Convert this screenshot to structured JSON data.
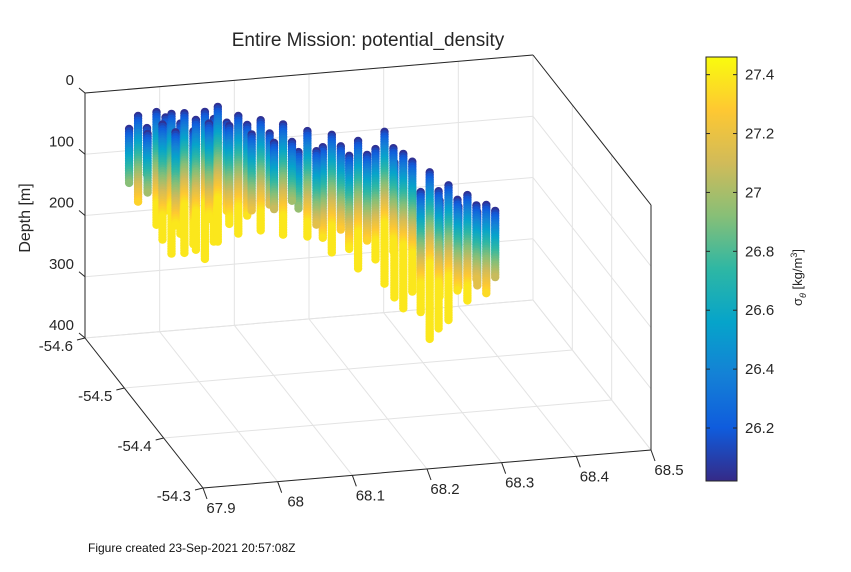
{
  "footer": "Figure created 23-Sep-2021 20:57:08Z",
  "colorbar": {
    "label_main": "σ",
    "label_sub": "θ",
    "label_unit": " [kg/m",
    "label_sup": "3",
    "label_close": "]",
    "ticks": [
      "26.2",
      "26.4",
      "26.6",
      "26.8",
      "27",
      "27.2",
      "27.4"
    ],
    "tick_values": [
      26.2,
      26.4,
      26.6,
      26.8,
      27.0,
      27.2,
      27.4
    ],
    "range": [
      26.02,
      27.46
    ],
    "colormap": "parula",
    "colors": [
      "#352a87",
      "#0f5cdd",
      "#1481d6",
      "#06a4ca",
      "#2eb7a4",
      "#87bf77",
      "#d1bb59",
      "#fec832",
      "#f9fb0e"
    ]
  },
  "chart_data": {
    "type": "scatter",
    "projection": "3d",
    "title": "Entire Mission: potential_density",
    "xlabel": "",
    "ylabel": "",
    "zlabel": "Depth [m]",
    "xlim": [
      67.9,
      68.5
    ],
    "ylim": [
      -54.6,
      -54.3
    ],
    "zlim": [
      0,
      400
    ],
    "z_reversed": true,
    "grid": true,
    "x_ticks": [
      "67.9",
      "68",
      "68.1",
      "68.2",
      "68.3",
      "68.4",
      "68.5"
    ],
    "y_ticks": [
      "-54.6",
      "-54.5",
      "-54.4",
      "-54.3"
    ],
    "z_ticks": [
      "0",
      "100",
      "200",
      "300",
      "400"
    ],
    "x_tick_values": [
      67.9,
      68.0,
      68.1,
      68.2,
      68.3,
      68.4,
      68.5
    ],
    "y_tick_values": [
      -54.6,
      -54.5,
      -54.4,
      -54.3
    ],
    "z_tick_values": [
      0,
      100,
      200,
      300,
      400
    ],
    "color_variable": "potential_density",
    "profiles": [
      {
        "lon": 67.95,
        "lat": -54.56,
        "top": 10,
        "bottom": 150
      },
      {
        "lon": 67.98,
        "lat": -54.57,
        "top": 15,
        "bottom": 200
      },
      {
        "lon": 68.0,
        "lat": -54.57,
        "top": 20,
        "bottom": 250
      },
      {
        "lon": 68.02,
        "lat": -54.575,
        "top": 25,
        "bottom": 255
      },
      {
        "lon": 68.05,
        "lat": -54.58,
        "top": 30,
        "bottom": 270
      },
      {
        "lon": 68.07,
        "lat": -54.585,
        "top": 28,
        "bottom": 250
      },
      {
        "lon": 68.1,
        "lat": -54.59,
        "top": 50,
        "bottom": 245
      },
      {
        "lon": 68.13,
        "lat": -54.59,
        "top": 60,
        "bottom": 240
      },
      {
        "lon": 68.16,
        "lat": -54.59,
        "top": 70,
        "bottom": 250
      },
      {
        "lon": 68.19,
        "lat": -54.585,
        "top": 80,
        "bottom": 255
      },
      {
        "lon": 68.22,
        "lat": -54.58,
        "top": 85,
        "bottom": 280
      },
      {
        "lon": 68.25,
        "lat": -54.57,
        "top": 90,
        "bottom": 300
      },
      {
        "lon": 68.28,
        "lat": -54.56,
        "top": 70,
        "bottom": 320
      },
      {
        "lon": 68.3,
        "lat": -54.55,
        "top": 100,
        "bottom": 355
      },
      {
        "lon": 68.33,
        "lat": -54.54,
        "top": 125,
        "bottom": 400
      },
      {
        "lon": 68.35,
        "lat": -54.53,
        "top": 140,
        "bottom": 360
      },
      {
        "lon": 68.37,
        "lat": -54.52,
        "top": 150,
        "bottom": 325
      },
      {
        "lon": 68.39,
        "lat": -54.51,
        "top": 160,
        "bottom": 305
      }
    ]
  }
}
